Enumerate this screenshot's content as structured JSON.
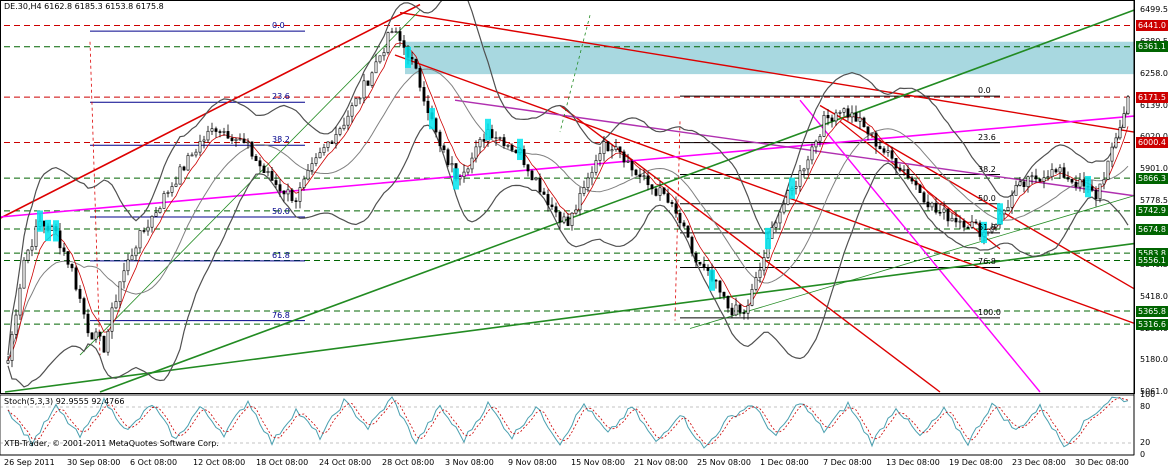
{
  "header": {
    "symbol": "DE.30,H4",
    "ohlc": "6162.8 6185.3 6153.8 6175.8"
  },
  "footer": {
    "copyright": "XTB-Trader, © 2001-2011 MetaQuotes Software Corp."
  },
  "stoch": {
    "label": "Stoch(5,3,3) 92.9555 92.4766",
    "levels": [
      "100",
      "80",
      "20",
      "0"
    ]
  },
  "price_axis": {
    "ticks": [
      "6499.5",
      "6380.5",
      "6258.0",
      "6139.0",
      "6020.0",
      "5901.0",
      "5778.5",
      "5659.5",
      "5540.5",
      "5418.0",
      "5299.0",
      "5180.0",
      "5061.0"
    ],
    "badges": [
      {
        "text": "6441.0",
        "color": "#cc0000"
      },
      {
        "text": "6361.1",
        "color": "#006400"
      },
      {
        "text": "6171.5",
        "color": "#cc0000"
      },
      {
        "text": "6000.4",
        "color": "#cc0000"
      },
      {
        "text": "5866.3",
        "color": "#006400"
      },
      {
        "text": "5742.9",
        "color": "#006400"
      },
      {
        "text": "5674.8",
        "color": "#006400"
      },
      {
        "text": "5583.8",
        "color": "#006400"
      },
      {
        "text": "5556.1",
        "color": "#006400"
      },
      {
        "text": "5365.8",
        "color": "#006400"
      },
      {
        "text": "5316.6",
        "color": "#006400"
      }
    ]
  },
  "fib_labels_left": [
    "0.0",
    "23.6",
    "38.2",
    "50.0",
    "61.8",
    "76.8"
  ],
  "fib_labels_right": [
    "0.0",
    "23.6",
    "38.2",
    "50.0",
    "61.8",
    "76.8",
    "100.0"
  ],
  "chart_data": {
    "type": "candlestick",
    "x_tick_labels": [
      "26 Sep 2011",
      "30 Sep 08:00",
      "6 Oct 08:00",
      "12 Oct 08:00",
      "18 Oct 08:00",
      "24 Oct 08:00",
      "28 Oct 08:00",
      "3 Nov 08:00",
      "9 Nov 08:00",
      "15 Nov 08:00",
      "21 Nov 08:00",
      "25 Nov 08:00",
      "1 Dec 08:00",
      "7 Dec 08:00",
      "13 Dec 08:00",
      "19 Dec 08:00",
      "23 Dec 08:00",
      "30 Dec 08:00"
    ],
    "ylim": [
      5061.0,
      6499.5
    ],
    "anchors": [
      [
        0,
        5180
      ],
      [
        4,
        5560
      ],
      [
        8,
        5700
      ],
      [
        12,
        5660
      ],
      [
        16,
        5520
      ],
      [
        20,
        5300
      ],
      [
        24,
        5230
      ],
      [
        28,
        5480
      ],
      [
        32,
        5620
      ],
      [
        36,
        5720
      ],
      [
        40,
        5820
      ],
      [
        44,
        5910
      ],
      [
        48,
        6000
      ],
      [
        52,
        6060
      ],
      [
        56,
        6030
      ],
      [
        60,
        5980
      ],
      [
        64,
        5890
      ],
      [
        68,
        5830
      ],
      [
        72,
        5790
      ],
      [
        76,
        5900
      ],
      [
        80,
        6000
      ],
      [
        84,
        6080
      ],
      [
        88,
        6180
      ],
      [
        92,
        6300
      ],
      [
        96,
        6420
      ],
      [
        100,
        6340
      ],
      [
        104,
        6180
      ],
      [
        108,
        5980
      ],
      [
        112,
        5880
      ],
      [
        116,
        5940
      ],
      [
        120,
        6050
      ],
      [
        124,
        6010
      ],
      [
        128,
        5960
      ],
      [
        132,
        5860
      ],
      [
        136,
        5760
      ],
      [
        140,
        5690
      ],
      [
        144,
        5820
      ],
      [
        148,
        5980
      ],
      [
        152,
        6000
      ],
      [
        156,
        5900
      ],
      [
        160,
        5840
      ],
      [
        164,
        5800
      ],
      [
        168,
        5700
      ],
      [
        172,
        5550
      ],
      [
        176,
        5480
      ],
      [
        180,
        5380
      ],
      [
        184,
        5350
      ],
      [
        188,
        5520
      ],
      [
        192,
        5720
      ],
      [
        196,
        5820
      ],
      [
        200,
        5950
      ],
      [
        204,
        6080
      ],
      [
        208,
        6130
      ],
      [
        212,
        6090
      ],
      [
        216,
        6020
      ],
      [
        220,
        5950
      ],
      [
        224,
        5900
      ],
      [
        228,
        5820
      ],
      [
        232,
        5740
      ],
      [
        236,
        5720
      ],
      [
        240,
        5700
      ],
      [
        244,
        5660
      ],
      [
        248,
        5720
      ],
      [
        252,
        5820
      ],
      [
        256,
        5860
      ],
      [
        260,
        5890
      ],
      [
        264,
        5880
      ],
      [
        268,
        5840
      ],
      [
        272,
        5800
      ],
      [
        276,
        5960
      ],
      [
        280,
        6170
      ]
    ],
    "stoch_anchors": [
      [
        0,
        75
      ],
      [
        6,
        20
      ],
      [
        12,
        80
      ],
      [
        18,
        30
      ],
      [
        24,
        90
      ],
      [
        30,
        40
      ],
      [
        36,
        85
      ],
      [
        42,
        25
      ],
      [
        48,
        80
      ],
      [
        54,
        35
      ],
      [
        60,
        90
      ],
      [
        66,
        20
      ],
      [
        72,
        75
      ],
      [
        78,
        30
      ],
      [
        84,
        90
      ],
      [
        90,
        45
      ],
      [
        96,
        95
      ],
      [
        102,
        20
      ],
      [
        108,
        80
      ],
      [
        114,
        25
      ],
      [
        120,
        85
      ],
      [
        126,
        30
      ],
      [
        132,
        80
      ],
      [
        138,
        20
      ],
      [
        144,
        85
      ],
      [
        150,
        35
      ],
      [
        156,
        80
      ],
      [
        162,
        20
      ],
      [
        168,
        70
      ],
      [
        174,
        10
      ],
      [
        180,
        60
      ],
      [
        186,
        85
      ],
      [
        192,
        30
      ],
      [
        198,
        90
      ],
      [
        204,
        40
      ],
      [
        210,
        85
      ],
      [
        216,
        20
      ],
      [
        222,
        80
      ],
      [
        228,
        30
      ],
      [
        234,
        75
      ],
      [
        240,
        20
      ],
      [
        246,
        85
      ],
      [
        252,
        40
      ],
      [
        258,
        80
      ],
      [
        264,
        15
      ],
      [
        270,
        60
      ],
      [
        276,
        95
      ],
      [
        280,
        92
      ]
    ]
  }
}
